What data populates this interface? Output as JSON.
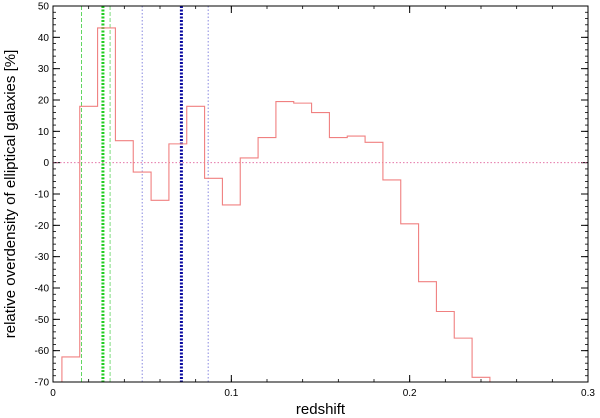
{
  "chart_data": {
    "type": "line",
    "xlabel": "redshift",
    "ylabel": "relative overdensity of elliptical galaxies [%]",
    "xlim": [
      0,
      0.3
    ],
    "ylim": [
      -70,
      50
    ],
    "xticks": [
      {
        "value": 0,
        "label": "0"
      },
      {
        "value": 0.1,
        "label": "0.1"
      },
      {
        "value": 0.2,
        "label": "0.2"
      },
      {
        "value": 0.3,
        "label": "0.3"
      }
    ],
    "yticks": [
      {
        "value": 50,
        "label": "50"
      },
      {
        "value": 40,
        "label": "40"
      },
      {
        "value": 30,
        "label": "30"
      },
      {
        "value": 20,
        "label": "20"
      },
      {
        "value": 10,
        "label": "10"
      },
      {
        "value": 0,
        "label": "0"
      },
      {
        "value": -10,
        "label": "-10"
      },
      {
        "value": -20,
        "label": "-20"
      },
      {
        "value": -30,
        "label": "-30"
      },
      {
        "value": -40,
        "label": "-40"
      },
      {
        "value": -50,
        "label": "-50"
      },
      {
        "value": -60,
        "label": "-60"
      },
      {
        "value": -70,
        "label": "-70"
      }
    ],
    "xminor_step": 0.02,
    "yminor_step": 2,
    "histogram": {
      "color": "#f08080",
      "bin_edges": [
        0.005,
        0.015,
        0.025,
        0.035,
        0.045,
        0.055,
        0.065,
        0.075,
        0.085,
        0.095,
        0.105,
        0.115,
        0.125,
        0.135,
        0.145,
        0.155,
        0.165,
        0.175,
        0.185,
        0.195,
        0.205,
        0.215,
        0.225,
        0.235,
        0.245
      ],
      "values": [
        -62,
        18,
        43,
        7,
        -3,
        -12,
        6,
        18,
        -5,
        -13.5,
        1.5,
        8,
        19.5,
        19,
        16,
        8,
        8.5,
        6.5,
        -5.5,
        -19.5,
        -38,
        -47.5,
        -56,
        -68.5
      ]
    },
    "reference_lines": [
      {
        "orientation": "horizontal",
        "value": 0,
        "color": "#e0609a",
        "style": "dotted"
      },
      {
        "orientation": "vertical",
        "value": 0.016,
        "color": "#3ccc3c",
        "style": "dashed",
        "width": 0.8
      },
      {
        "orientation": "vertical",
        "value": 0.028,
        "color": "#22cc22",
        "style": "dotted",
        "width": 3
      },
      {
        "orientation": "vertical",
        "value": 0.032,
        "color": "#5ad35a",
        "style": "dashed",
        "width": 0.8
      },
      {
        "orientation": "vertical",
        "value": 0.05,
        "color": "#6a6ad8",
        "style": "dotted",
        "width": 0.8
      },
      {
        "orientation": "vertical",
        "value": 0.072,
        "color": "#0a0aa0",
        "style": "dotted",
        "width": 3
      },
      {
        "orientation": "vertical",
        "value": 0.087,
        "color": "#6a6ad8",
        "style": "dotted",
        "width": 0.8
      }
    ]
  }
}
